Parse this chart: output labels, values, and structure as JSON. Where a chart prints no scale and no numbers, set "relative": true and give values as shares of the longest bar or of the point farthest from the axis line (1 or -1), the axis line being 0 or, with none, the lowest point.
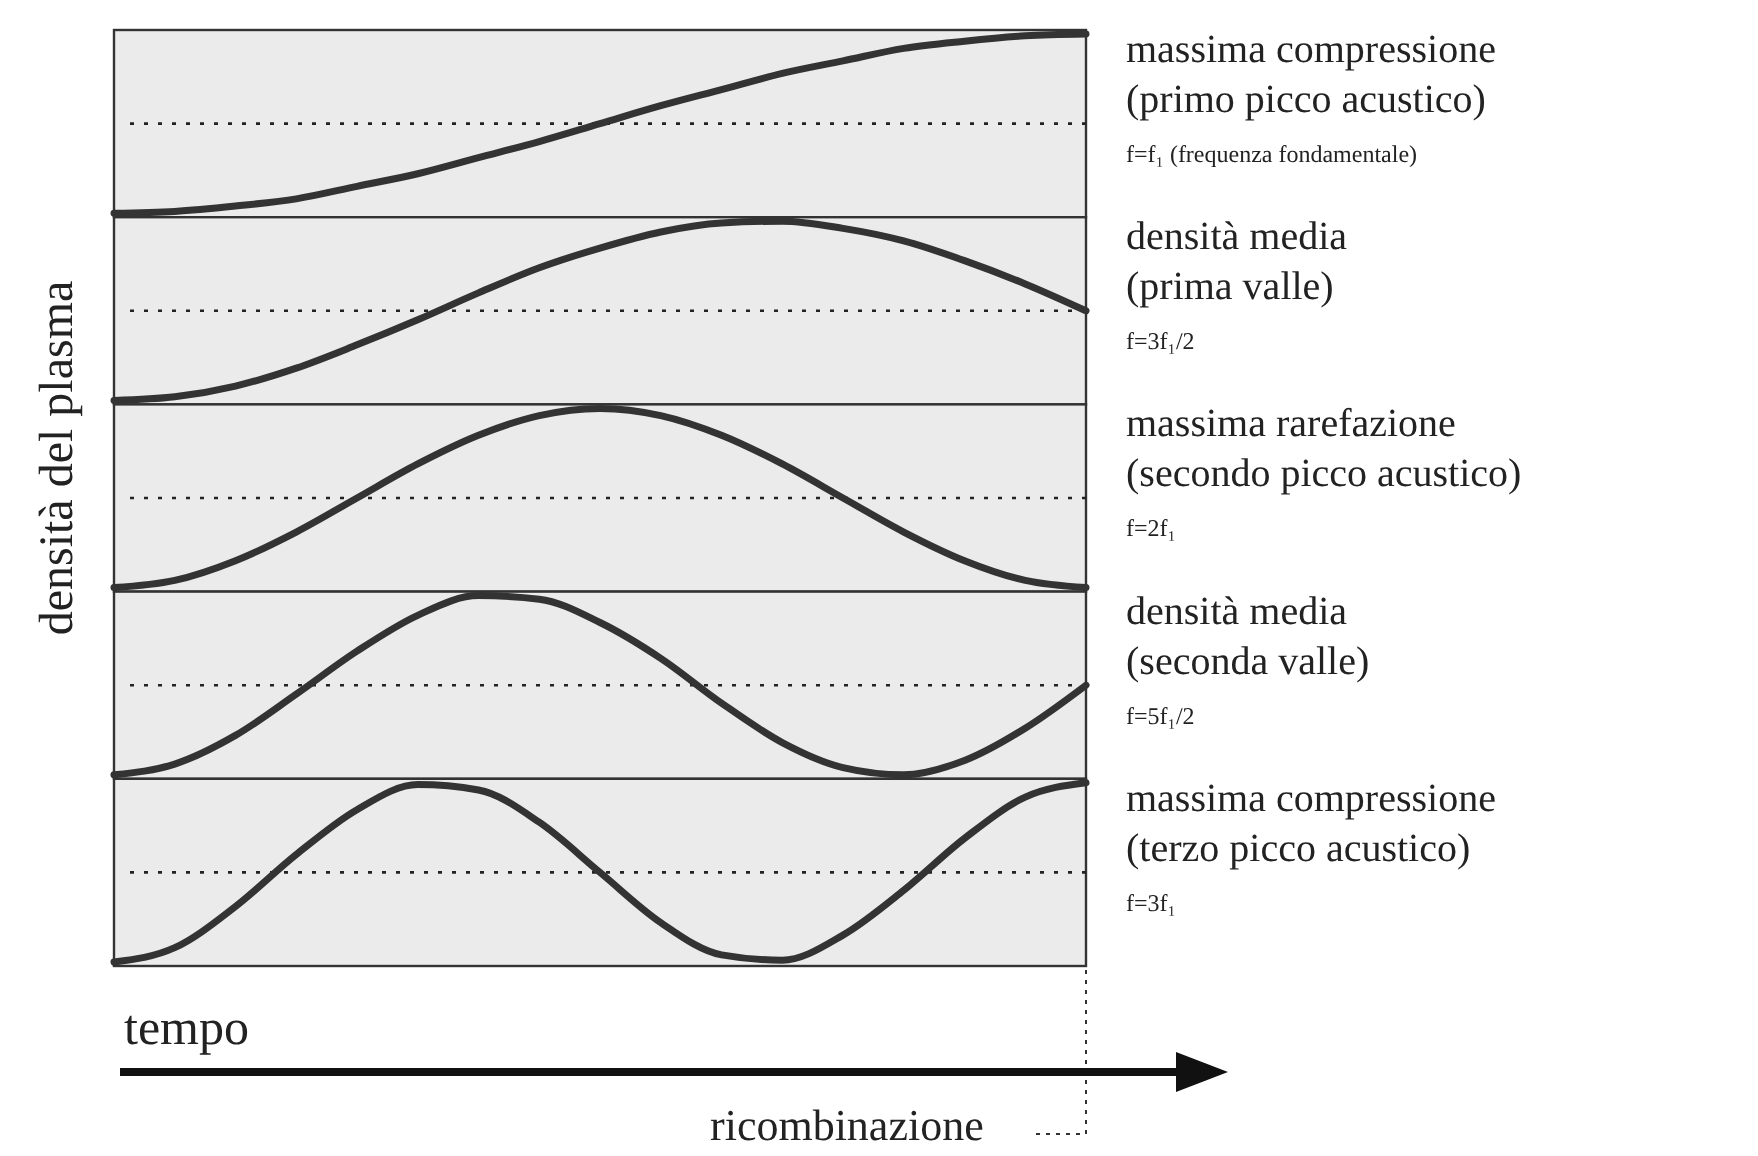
{
  "chart_data": [
    {
      "type": "line",
      "relative": true,
      "categories": [
        null,
        null,
        null,
        null,
        null,
        null,
        null,
        null,
        null,
        null,
        null,
        null,
        null,
        null,
        null,
        null,
        null
      ],
      "series": [
        {
          "color": "#333333",
          "values": [
            0,
            0.01,
            0.04,
            0.08,
            0.15,
            0.22,
            0.31,
            0.4,
            0.5,
            0.6,
            0.69,
            0.78,
            0.85,
            0.92,
            0.96,
            0.99,
            1
          ]
        }
      ],
      "ref_lines": [
        {
          "axis": "y",
          "value": 0.5,
          "line_style": "dotted"
        }
      ],
      "annotations": [
        "massima compressione",
        "(primo picco acustico)",
        "f=f₁ (frequenza fondamentale)"
      ]
    },
    {
      "type": "line",
      "relative": true,
      "categories": [
        null,
        null,
        null,
        null,
        null,
        null,
        null,
        null,
        null,
        null,
        null,
        null,
        null,
        null,
        null,
        null,
        null
      ],
      "series": [
        {
          "color": "#333333",
          "values": [
            0,
            0.02,
            0.08,
            0.18,
            0.31,
            0.45,
            0.6,
            0.74,
            0.85,
            0.94,
            0.99,
            1,
            0.96,
            0.89,
            0.78,
            0.65,
            0.5
          ]
        }
      ],
      "ref_lines": [
        {
          "axis": "y",
          "value": 0.5,
          "line_style": "dotted"
        }
      ],
      "annotations": [
        "densità media",
        "(prima valle)",
        "f=3f₁/2"
      ]
    },
    {
      "type": "line",
      "relative": true,
      "ylabel": "densità del plasma",
      "categories": [
        null,
        null,
        null,
        null,
        null,
        null,
        null,
        null,
        null,
        null,
        null,
        null,
        null,
        null,
        null,
        null,
        null
      ],
      "series": [
        {
          "color": "#333333",
          "values": [
            0,
            0.04,
            0.15,
            0.31,
            0.5,
            0.69,
            0.85,
            0.96,
            1,
            0.96,
            0.85,
            0.69,
            0.5,
            0.31,
            0.15,
            0.04,
            0
          ]
        }
      ],
      "ref_lines": [
        {
          "axis": "y",
          "value": 0.5,
          "line_style": "dotted"
        }
      ],
      "annotations": [
        "massima rarefazione",
        "(secondo picco acustico)",
        "f=2f₁"
      ]
    },
    {
      "type": "line",
      "relative": true,
      "categories": [
        null,
        null,
        null,
        null,
        null,
        null,
        null,
        null,
        null,
        null,
        null,
        null,
        null,
        null,
        null,
        null,
        null
      ],
      "series": [
        {
          "color": "#333333",
          "values": [
            0,
            0.06,
            0.22,
            0.45,
            0.69,
            0.89,
            1,
            0.98,
            0.85,
            0.65,
            0.4,
            0.18,
            0.04,
            0,
            0.08,
            0.26,
            0.5
          ]
        }
      ],
      "ref_lines": [
        {
          "axis": "y",
          "value": 0.5,
          "line_style": "dotted"
        }
      ],
      "annotations": [
        "densità media",
        "(seconda valle)",
        "f=5f₁/2"
      ]
    },
    {
      "type": "line",
      "relative": true,
      "xlabel": "tempo",
      "categories": [
        null,
        null,
        null,
        null,
        null,
        null,
        null,
        null,
        null,
        null,
        null,
        null,
        null,
        null,
        null,
        null,
        null
      ],
      "series": [
        {
          "color": "#333333",
          "values": [
            0,
            0.08,
            0.31,
            0.6,
            0.85,
            0.99,
            0.96,
            0.78,
            0.5,
            0.22,
            0.04,
            0.01,
            0.15,
            0.4,
            0.69,
            0.92,
            1
          ]
        }
      ],
      "ref_lines": [
        {
          "axis": "y",
          "value": 0.5,
          "line_style": "dotted"
        }
      ],
      "annotations": [
        "massima compressione",
        "(terzo picco acustico)",
        "f=3f₁",
        "ricombinazione"
      ]
    }
  ]
}
